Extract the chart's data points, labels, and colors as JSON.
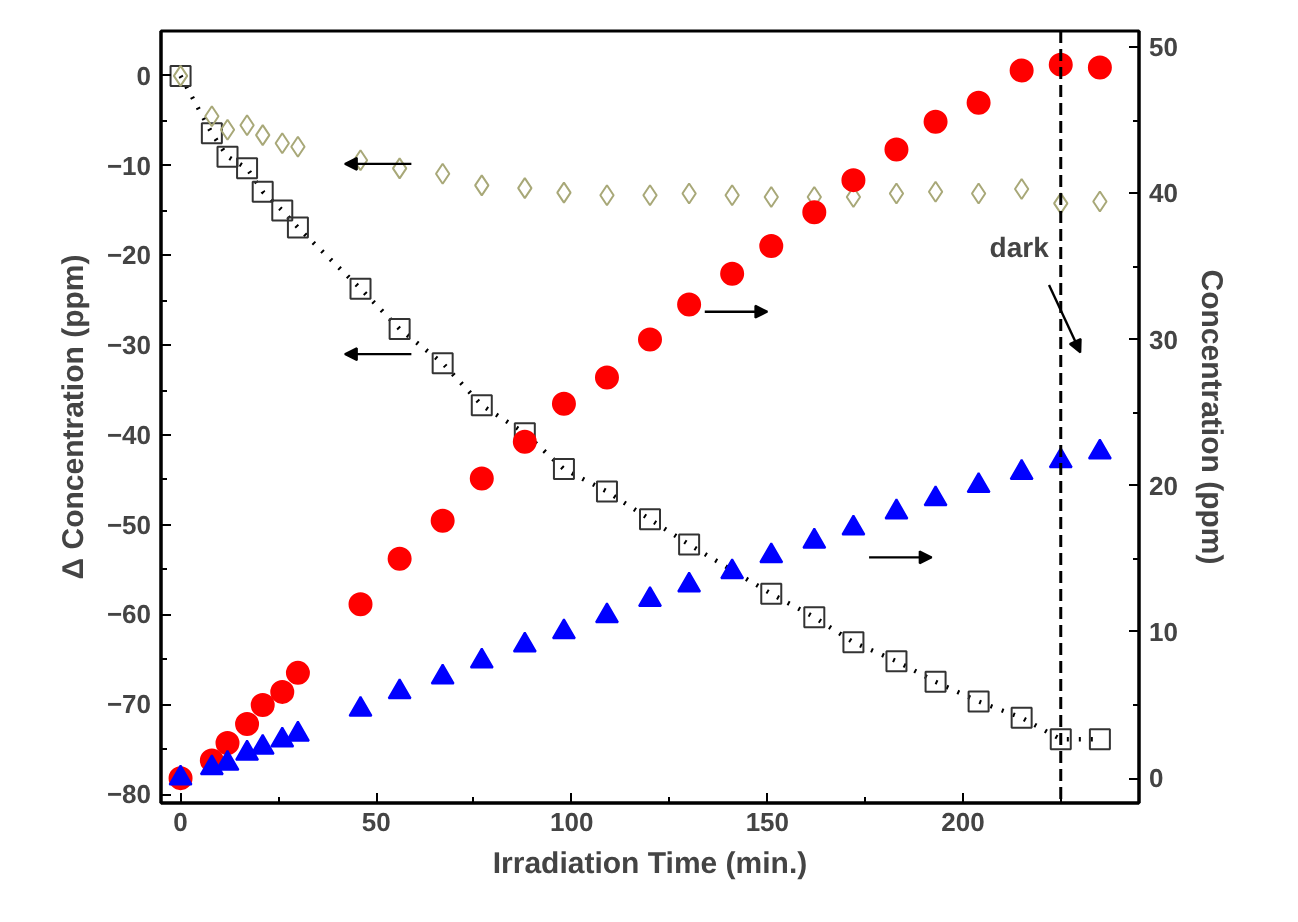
{
  "chart_data": {
    "type": "scatter",
    "xlabel": "Irradiation Time (min.)",
    "ylabel": "Δ Concentration (ppm)",
    "y2label": "Concentration (ppm)",
    "x": [
      0,
      8,
      12,
      17,
      21,
      26,
      30,
      46,
      56,
      67,
      77,
      88,
      98,
      109,
      120,
      130,
      141,
      151,
      162,
      172,
      183,
      193,
      204,
      215,
      225,
      235
    ],
    "series": [
      {
        "type": "line",
        "color": "#333333",
        "marker": "square",
        "line_style": "dotted",
        "values": [
          0,
          -6.4,
          -9.0,
          -10.3,
          -12.9,
          -15.0,
          -16.9,
          -23.7,
          -28.2,
          -32.0,
          -36.7,
          -39.8,
          -43.8,
          -46.3,
          -49.4,
          -52.2,
          null,
          -57.7,
          -60.3,
          -63.1,
          -65.2,
          -67.5,
          -69.7,
          -71.5,
          -73.9,
          -73.9
        ]
      },
      {
        "type": "scatter",
        "color": "#a8a878",
        "marker": "diamond",
        "values": [
          0,
          -4.5,
          -6.0,
          -5.5,
          -6.6,
          -7.5,
          -7.9,
          -9.4,
          -10.3,
          -10.9,
          -12.2,
          -12.5,
          -13.0,
          -13.3,
          -13.3,
          -13.1,
          -13.3,
          -13.5,
          -13.5,
          -13.5,
          -13.1,
          -12.9,
          -13.1,
          -12.6,
          -14.2,
          -14.0
        ]
      },
      {
        "type": "scatter",
        "axis": "y2",
        "color": "#ff0000",
        "marker": "circle",
        "values": [
          0,
          1.2,
          2.4,
          3.7,
          5.0,
          5.9,
          7.2,
          11.9,
          15.0,
          17.6,
          20.5,
          23.0,
          25.6,
          27.4,
          30.0,
          32.4,
          34.5,
          36.4,
          38.7,
          40.9,
          43.0,
          44.9,
          46.2,
          48.4,
          48.8,
          48.6
        ]
      },
      {
        "type": "scatter",
        "axis": "y2",
        "color": "#0000ff",
        "marker": "triangle",
        "values": [
          0,
          0.7,
          1.0,
          1.7,
          2.1,
          2.6,
          3.0,
          4.7,
          5.9,
          6.9,
          8.0,
          9.1,
          10.0,
          11.1,
          12.2,
          13.2,
          14.1,
          15.2,
          16.2,
          17.1,
          18.2,
          19.1,
          20.0,
          20.9,
          21.7,
          22.3
        ]
      }
    ],
    "xlim": [
      -5,
      245
    ],
    "xticks": [
      0,
      50,
      100,
      150,
      200
    ],
    "ylim": [
      -81,
      5
    ],
    "yticks": [
      -80,
      -70,
      -60,
      -50,
      -40,
      -30,
      -20,
      -10,
      0
    ],
    "y2lim": [
      -1.7,
      51.1
    ],
    "y2ticks": [
      0,
      10,
      20,
      30,
      40,
      50
    ],
    "ref_lines": [
      {
        "axis": "x",
        "value": 225,
        "label": "dark",
        "color": "#000000",
        "line_style": "dashed"
      }
    ],
    "grid": false
  }
}
